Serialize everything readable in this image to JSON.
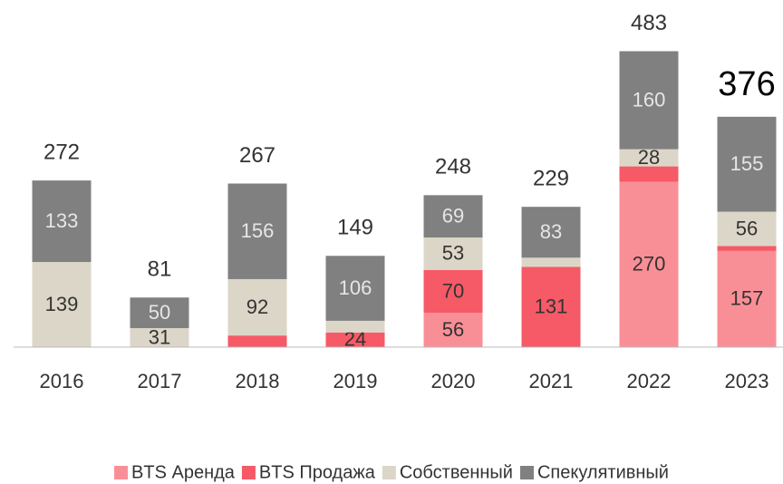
{
  "chart_data": {
    "type": "stacked-bar",
    "categories": [
      "2016",
      "2017",
      "2018",
      "2019",
      "2020",
      "2021",
      "2022",
      "2023"
    ],
    "series": [
      {
        "name": "BTS Аренда",
        "color": "#f98f96",
        "values": [
          0,
          0,
          0,
          0,
          56,
          0,
          270,
          157
        ],
        "value_labels": [
          null,
          null,
          null,
          null,
          56,
          null,
          270,
          157
        ]
      },
      {
        "name": "BTS Продажа",
        "color": "#f55a66",
        "values": [
          0,
          0,
          19,
          24,
          70,
          131,
          25,
          8
        ],
        "value_labels": [
          null,
          null,
          null,
          24,
          70,
          131,
          null,
          null
        ]
      },
      {
        "name": "Собственный",
        "color": "#dcd6c8",
        "values": [
          139,
          31,
          92,
          19,
          53,
          15,
          28,
          56
        ],
        "value_labels": [
          139,
          31,
          92,
          null,
          53,
          null,
          28,
          56
        ]
      },
      {
        "name": "Спекулятивный",
        "color": "#808080",
        "values": [
          133,
          50,
          156,
          106,
          69,
          83,
          160,
          155
        ],
        "value_labels": [
          133,
          50,
          156,
          106,
          69,
          83,
          160,
          155
        ]
      }
    ],
    "totals": [
      272,
      81,
      267,
      149,
      248,
      229,
      483,
      376
    ],
    "legend": "bottom"
  }
}
